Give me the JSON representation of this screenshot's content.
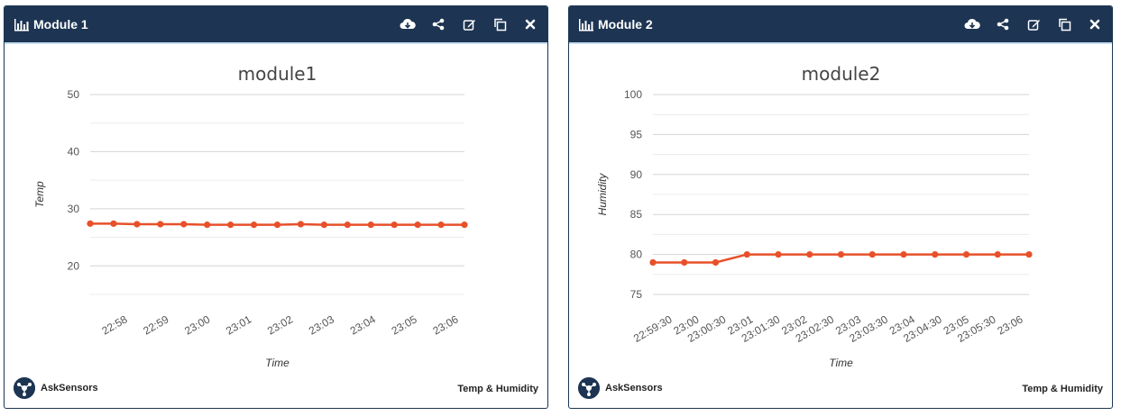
{
  "brand_colors": {
    "header": "#1d3553",
    "line": "#e8502a",
    "grid": "#dddddd"
  },
  "panels": [
    {
      "title": "Module 1",
      "title_icon": "bar-chart-icon",
      "tools": [
        "cloud-download-icon",
        "share-icon",
        "edit-icon",
        "copy-icon",
        "close-icon"
      ],
      "brand": "AskSensors",
      "footer_label": "Temp & Humidity",
      "chart_data": {
        "type": "line",
        "title": "module1",
        "xlabel": "Time",
        "ylabel": "Temp",
        "ylim": [
          15,
          50
        ],
        "yticks": [
          20,
          30,
          40,
          50
        ],
        "xticks": [
          "22:58",
          "22:59",
          "23:00",
          "23:01",
          "23:02",
          "23:03",
          "23:04",
          "23:05",
          "23:06"
        ],
        "series": [
          {
            "values": [
              27.4,
              27.4,
              27.3,
              27.3,
              27.3,
              27.2,
              27.2,
              27.2,
              27.2,
              27.3,
              27.2,
              27.2,
              27.2,
              27.2,
              27.2,
              27.2,
              27.2
            ]
          }
        ]
      }
    },
    {
      "title": "Module 2",
      "title_icon": "bar-chart-icon",
      "tools": [
        "cloud-download-icon",
        "share-icon",
        "edit-icon",
        "copy-icon",
        "close-icon"
      ],
      "brand": "AskSensors",
      "footer_label": "Temp & Humidity",
      "chart_data": {
        "type": "line",
        "title": "module2",
        "xlabel": "Time",
        "ylabel": "Humidity",
        "ylim": [
          75,
          100
        ],
        "yticks": [
          75,
          80,
          85,
          90,
          95,
          100
        ],
        "xticks": [
          "22:59:30",
          "23:00",
          "23:00:30",
          "23:01",
          "23:01:30",
          "23:02",
          "23:02:30",
          "23:03",
          "23:03:30",
          "23:04",
          "23:04:30",
          "23:05",
          "23:05:30",
          "23:06"
        ],
        "series": [
          {
            "values": [
              79,
              79,
              79,
              80,
              80,
              80,
              80,
              80,
              80,
              80,
              80,
              80,
              80
            ]
          }
        ]
      }
    }
  ]
}
